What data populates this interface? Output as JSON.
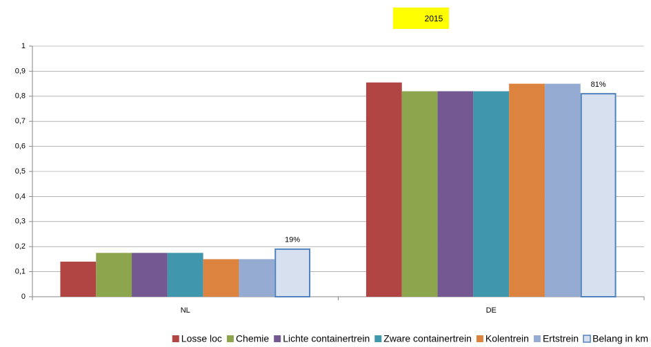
{
  "chart_data": {
    "type": "bar",
    "title": "2015",
    "categories": [
      "NL",
      "DE"
    ],
    "series": [
      {
        "name": "Losse loc",
        "color": "#b04543",
        "values": [
          0.14,
          0.855
        ]
      },
      {
        "name": "Chemie",
        "color": "#8da64d",
        "values": [
          0.175,
          0.82
        ]
      },
      {
        "name": "Lichte containertrein",
        "color": "#735891",
        "values": [
          0.175,
          0.82
        ]
      },
      {
        "name": "Zware containertrein",
        "color": "#4097ad",
        "values": [
          0.175,
          0.82
        ]
      },
      {
        "name": "Kolentrein",
        "color": "#dd8340",
        "values": [
          0.15,
          0.85
        ]
      },
      {
        "name": "Ertstrein",
        "color": "#95abd1",
        "values": [
          0.15,
          0.85
        ]
      },
      {
        "name": "Belang in km",
        "color": "#d6e0ef",
        "values": [
          0.19,
          0.81
        ],
        "value_labels": [
          "19%",
          "81%"
        ]
      }
    ],
    "ylim": [
      0,
      1
    ],
    "yticks": [
      0,
      {
        "value": 0.1,
        "label": "0,1"
      },
      {
        "value": 0.2,
        "label": "0,2"
      },
      {
        "value": 0.3,
        "label": "0,3"
      },
      {
        "value": 0.4,
        "label": "0,4"
      },
      {
        "value": 0.5,
        "label": "0,5"
      },
      {
        "value": 0.6,
        "label": "0,6"
      },
      {
        "value": 0.7,
        "label": "0,7"
      },
      {
        "value": 0.8,
        "label": "0,8"
      },
      {
        "value": 0.9,
        "label": "0,9"
      },
      1
    ],
    "grid": true
  }
}
